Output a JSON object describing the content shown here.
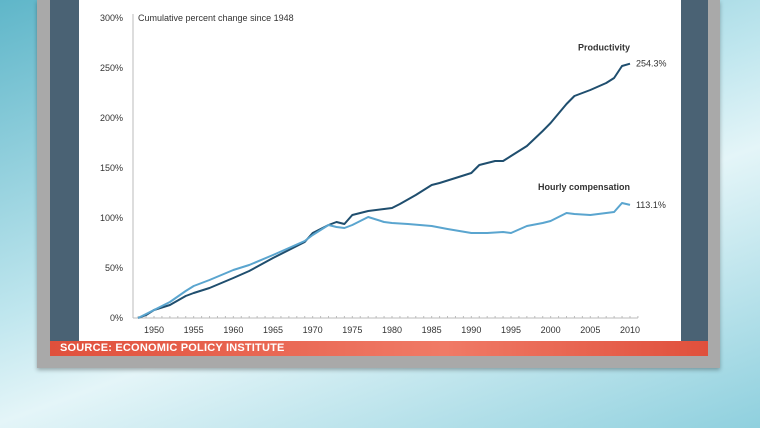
{
  "source_label": "SOURCE: ECONOMIC POLICY INSTITUTE",
  "chart_data": {
    "type": "line",
    "title": "Cumulative percent change since 1948",
    "xlabel": "",
    "ylabel": "",
    "xlim": [
      1948,
      2011
    ],
    "ylim": [
      0,
      300
    ],
    "xticks": [
      1950,
      1955,
      1960,
      1965,
      1970,
      1975,
      1980,
      1985,
      1990,
      1995,
      2000,
      2005,
      2010
    ],
    "yticks": [
      0,
      50,
      100,
      150,
      200,
      250,
      300
    ],
    "ytick_labels": [
      "0%",
      "50%",
      "100%",
      "150%",
      "200%",
      "250%",
      "300%"
    ],
    "series": [
      {
        "name": "Productivity",
        "color": "#1f4e6e",
        "end_label": "254.3%",
        "x": [
          1948,
          1949,
          1950,
          1952,
          1954,
          1955,
          1957,
          1960,
          1962,
          1965,
          1967,
          1969,
          1970,
          1972,
          1973,
          1974,
          1975,
          1977,
          1979,
          1980,
          1981,
          1983,
          1985,
          1986,
          1988,
          1990,
          1991,
          1993,
          1994,
          1995,
          1997,
          1999,
          2000,
          2002,
          2003,
          2005,
          2007,
          2008,
          2009,
          2010
        ],
        "y": [
          0,
          3,
          8,
          13,
          22,
          25,
          30,
          40,
          47,
          60,
          68,
          76,
          85,
          93,
          96,
          94,
          103,
          107,
          109,
          110,
          114,
          123,
          133,
          135,
          140,
          145,
          153,
          157,
          157,
          162,
          172,
          187,
          195,
          214,
          222,
          228,
          235,
          240,
          252,
          254.3
        ]
      },
      {
        "name": "Hourly compensation",
        "color": "#5aa5cf",
        "end_label": "113.1%",
        "x": [
          1948,
          1949,
          1950,
          1952,
          1954,
          1955,
          1957,
          1960,
          1962,
          1965,
          1967,
          1969,
          1970,
          1972,
          1973,
          1974,
          1975,
          1977,
          1979,
          1980,
          1982,
          1985,
          1987,
          1990,
          1992,
          1994,
          1995,
          1997,
          1999,
          2000,
          2002,
          2003,
          2005,
          2007,
          2008,
          2009,
          2010
        ],
        "y": [
          0,
          4,
          8,
          16,
          27,
          32,
          38,
          48,
          53,
          63,
          70,
          77,
          83,
          93,
          91,
          90,
          93,
          101,
          96,
          95,
          94,
          92,
          89,
          85,
          85,
          86,
          85,
          92,
          95,
          97,
          105,
          104,
          103,
          105,
          106,
          115,
          113.1
        ]
      }
    ]
  }
}
